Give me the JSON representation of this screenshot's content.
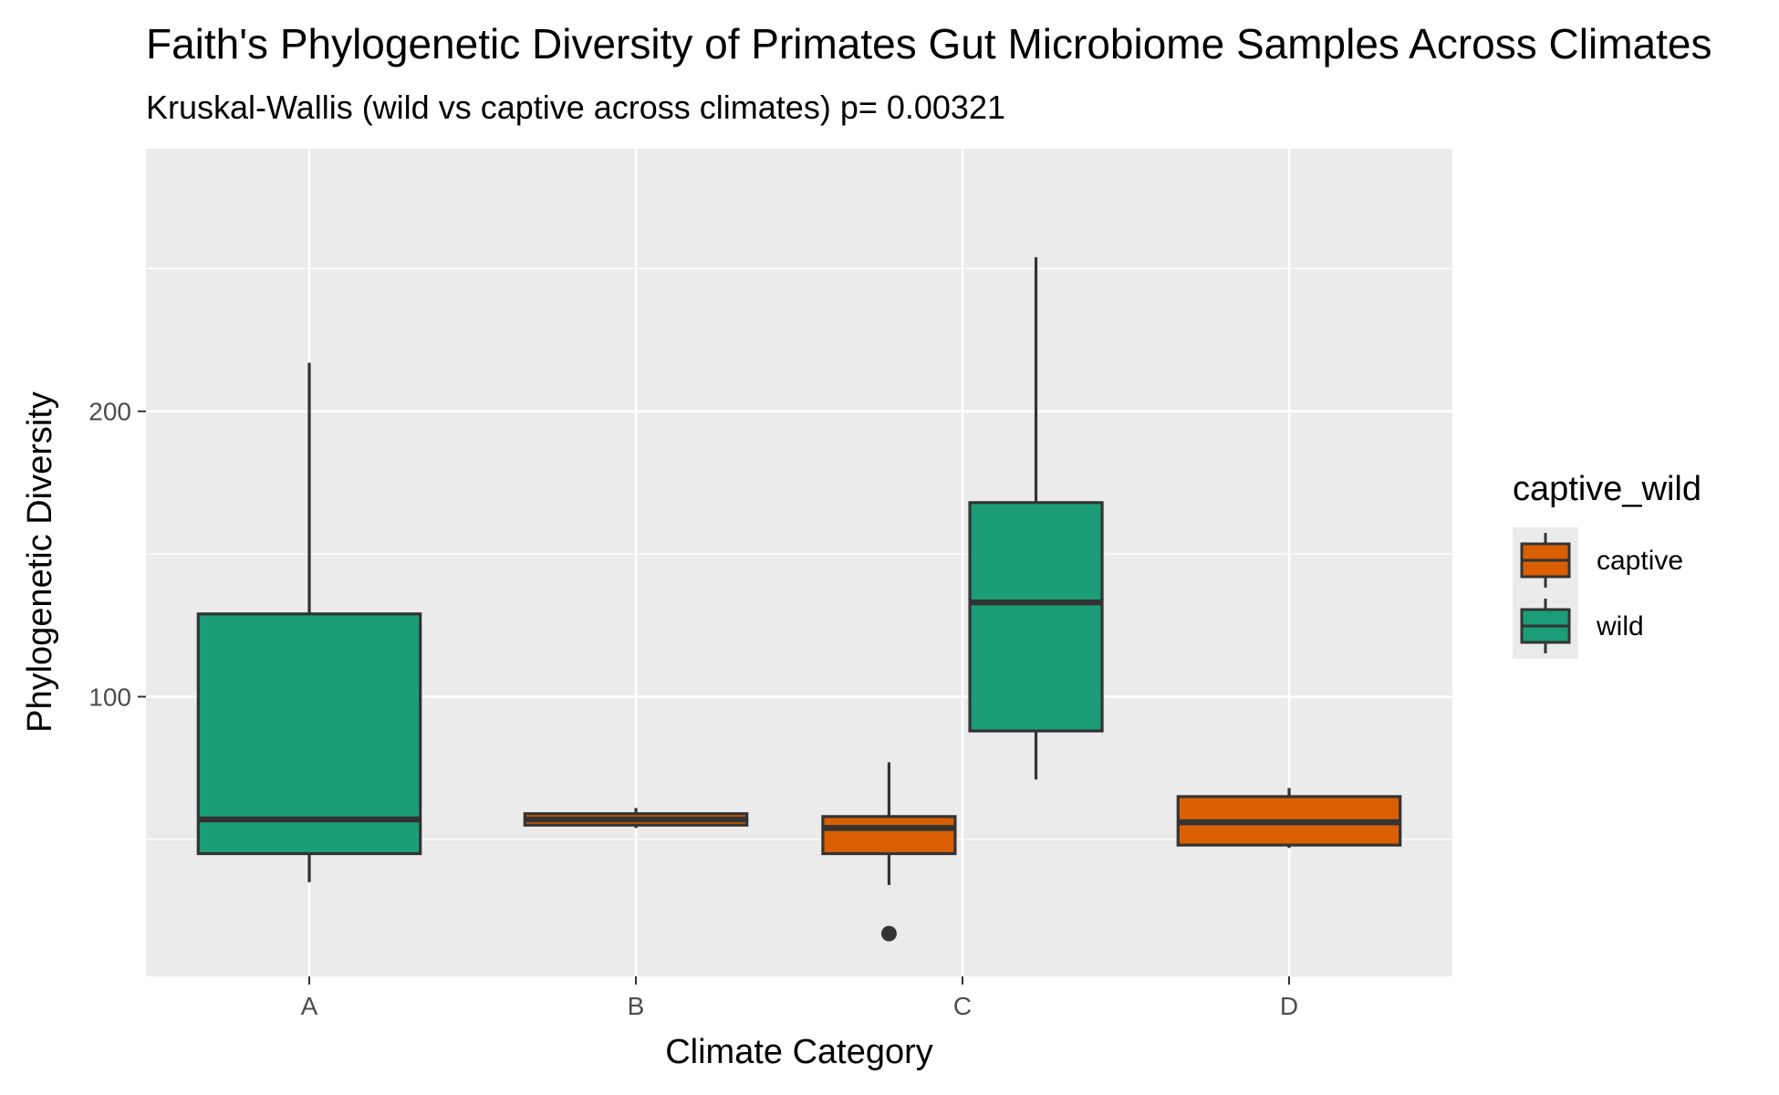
{
  "chart_data": {
    "type": "boxplot",
    "title": "Faith's Phylogenetic Diversity of Primates Gut Microbiome Samples Across Climates",
    "subtitle": "Kruskal-Wallis (wild vs captive across climates) p= 0.00321",
    "xlabel": "Climate Category",
    "ylabel": "Phylogenetic Diversity",
    "categories": [
      "A",
      "B",
      "C",
      "D"
    ],
    "y_ticks": [
      100,
      200
    ],
    "ylim": [
      2,
      292
    ],
    "grid": true,
    "legend_position": "right",
    "legend": {
      "title": "captive_wild",
      "entries": [
        {
          "label": "captive",
          "color": "#D95F02"
        },
        {
          "label": "wild",
          "color": "#1B9E77"
        }
      ]
    },
    "boxes": [
      {
        "category": "A",
        "group": "wild",
        "slot": "center",
        "min": 35,
        "q1": 45,
        "median": 57,
        "q3": 129,
        "max": 217,
        "outliers": []
      },
      {
        "category": "B",
        "group": "captive",
        "slot": "center",
        "min": 54,
        "q1": 55,
        "median": 57,
        "q3": 59,
        "max": 61,
        "outliers": []
      },
      {
        "category": "C",
        "group": "captive",
        "slot": "left",
        "min": 34,
        "q1": 45,
        "median": 54,
        "q3": 58,
        "max": 77,
        "outliers": [
          17
        ]
      },
      {
        "category": "C",
        "group": "wild",
        "slot": "right",
        "min": 71,
        "q1": 88,
        "median": 133,
        "q3": 168,
        "max": 254,
        "outliers": []
      },
      {
        "category": "D",
        "group": "captive",
        "slot": "center",
        "min": 47,
        "q1": 48,
        "median": 56,
        "q3": 65,
        "max": 68,
        "outliers": []
      }
    ],
    "colors": {
      "panel_background": "#EBEBEB",
      "grid": "#FFFFFF",
      "box_outline": "#333333",
      "wild": "#1B9E77",
      "captive": "#D95F02"
    }
  }
}
